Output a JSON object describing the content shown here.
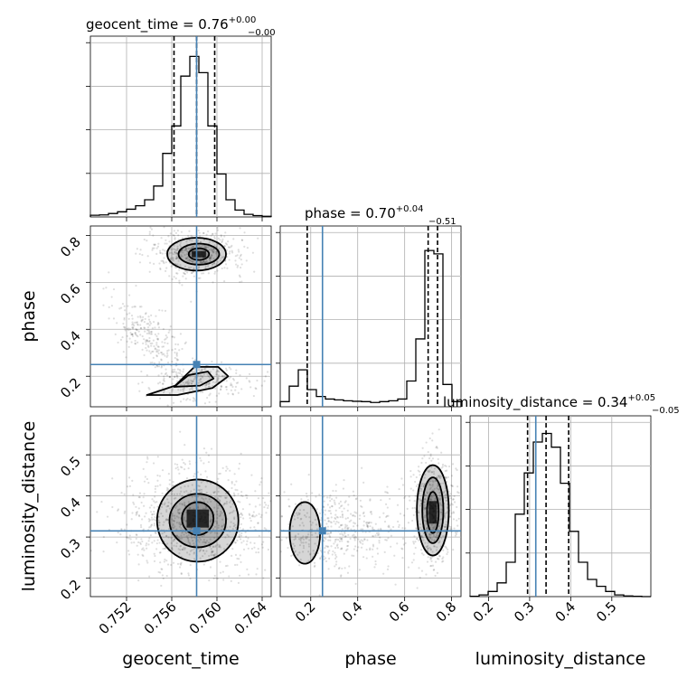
{
  "chart_data": {
    "type": "corner",
    "parameters": [
      "geocent_time",
      "phase",
      "luminosity_distance"
    ],
    "truths": {
      "geocent_time": 0.7582,
      "phase": 0.25,
      "luminosity_distance": 0.315
    },
    "truth_color": "#4682b4",
    "density_color": "#000000",
    "diagonal_titles": [
      {
        "param": "geocent_time",
        "text": "geocent_time = 0.76",
        "sup": "+0.00",
        "sub": "−0.00"
      },
      {
        "param": "phase",
        "text": "phase = 0.70",
        "sup": "+0.04",
        "sub": "−0.51"
      },
      {
        "param": "luminosity_distance",
        "text": "luminosity_distance = 0.34",
        "sup": "+0.05",
        "sub": "−0.05"
      }
    ],
    "axes": {
      "geocent_time": {
        "range": [
          0.7488,
          0.7648
        ],
        "ticks": [
          0.752,
          0.756,
          0.76,
          0.764
        ],
        "tick_labels": [
          "0.752",
          "0.756",
          "0.760",
          "0.764"
        ]
      },
      "phase": {
        "range": [
          0.07,
          0.84
        ],
        "ticks": [
          0.2,
          0.4,
          0.6,
          0.8
        ],
        "tick_labels": [
          "0.2",
          "0.4",
          "0.6",
          "0.8"
        ]
      },
      "luminosity_distance": {
        "range": [
          0.155,
          0.595
        ],
        "ticks": [
          0.2,
          0.3,
          0.4,
          0.5
        ],
        "tick_labels": [
          "0.2",
          "0.3",
          "0.4",
          "0.5"
        ]
      }
    },
    "histograms": {
      "geocent_time": {
        "bin_edges": [
          0.7488,
          0.7496,
          0.7504,
          0.7512,
          0.752,
          0.7528,
          0.7536,
          0.7544,
          0.7552,
          0.756,
          0.7568,
          0.7576,
          0.7584,
          0.7592,
          0.76,
          0.7608,
          0.7616,
          0.7624,
          0.7632,
          0.764,
          0.7648
        ],
        "counts": [
          0.01,
          0.012,
          0.02,
          0.03,
          0.045,
          0.065,
          0.1,
          0.18,
          0.37,
          0.53,
          0.82,
          0.935,
          0.84,
          0.53,
          0.25,
          0.1,
          0.04,
          0.015,
          0.008,
          0.004
        ],
        "quantiles": [
          0.7562,
          0.7582,
          0.7598
        ]
      },
      "phase": {
        "bin_edges": [
          0.07,
          0.1085,
          0.147,
          0.1855,
          0.224,
          0.2625,
          0.301,
          0.3395,
          0.378,
          0.4165,
          0.455,
          0.4935,
          0.532,
          0.5705,
          0.609,
          0.6475,
          0.686,
          0.7245,
          0.763,
          0.8015,
          0.84
        ],
        "counts": [
          0.03,
          0.12,
          0.215,
          0.1,
          0.06,
          0.045,
          0.04,
          0.035,
          0.032,
          0.03,
          0.025,
          0.03,
          0.035,
          0.045,
          0.15,
          0.395,
          0.91,
          0.89,
          0.13,
          0.03
        ],
        "quantiles": [
          0.185,
          0.7,
          0.74
        ]
      },
      "luminosity_distance": {
        "bin_edges": [
          0.155,
          0.177,
          0.199,
          0.221,
          0.243,
          0.265,
          0.287,
          0.309,
          0.331,
          0.353,
          0.375,
          0.397,
          0.419,
          0.441,
          0.463,
          0.485,
          0.507,
          0.529,
          0.551,
          0.573,
          0.595
        ],
        "counts": [
          0.002,
          0.01,
          0.03,
          0.08,
          0.2,
          0.48,
          0.72,
          0.9,
          0.95,
          0.87,
          0.66,
          0.38,
          0.2,
          0.1,
          0.06,
          0.03,
          0.01,
          0.004,
          0.002,
          0.0
        ],
        "quantiles": [
          0.295,
          0.34,
          0.395
        ]
      }
    },
    "contours_2d": [
      {
        "x": "geocent_time",
        "y": "phase",
        "levels": [
          {
            "shape": "ellipse",
            "center": [
              0.7582,
              0.72
            ],
            "rx": 0.0026,
            "ry": 0.07
          },
          {
            "shape": "ellipse",
            "center": [
              0.7584,
              0.72
            ],
            "rx": 0.0018,
            "ry": 0.045
          },
          {
            "shape": "ellipse",
            "center": [
              0.7584,
              0.72
            ],
            "rx": 0.0009,
            "ry": 0.025
          },
          {
            "shape": "polygon",
            "points": [
              [
                0.7538,
                0.12
              ],
              [
                0.7563,
                0.16
              ],
              [
                0.758,
                0.24
              ],
              [
                0.7601,
                0.24
              ],
              [
                0.761,
                0.2
              ],
              [
                0.7596,
                0.15
              ],
              [
                0.7565,
                0.12
              ]
            ]
          },
          {
            "shape": "polygon",
            "points": [
              [
                0.7562,
                0.155
              ],
              [
                0.7575,
                0.205
              ],
              [
                0.7592,
                0.22
              ],
              [
                0.7597,
                0.19
              ],
              [
                0.7585,
                0.16
              ]
            ]
          }
        ]
      },
      {
        "x": "geocent_time",
        "y": "luminosity_distance",
        "levels": [
          {
            "shape": "ellipse",
            "center": [
              0.7583,
              0.34
            ],
            "rx": 0.0036,
            "ry": 0.1
          },
          {
            "shape": "ellipse",
            "center": [
              0.7583,
              0.34
            ],
            "rx": 0.0025,
            "ry": 0.065
          },
          {
            "shape": "ellipse",
            "center": [
              0.7583,
              0.345
            ],
            "rx": 0.0014,
            "ry": 0.04
          }
        ]
      },
      {
        "x": "phase",
        "y": "luminosity_distance",
        "levels": [
          {
            "shape": "ellipse",
            "center": [
              0.72,
              0.365
            ],
            "rx": 0.068,
            "ry": 0.11
          },
          {
            "shape": "ellipse",
            "center": [
              0.72,
              0.365
            ],
            "rx": 0.045,
            "ry": 0.08
          },
          {
            "shape": "ellipse",
            "center": [
              0.72,
              0.36
            ],
            "rx": 0.025,
            "ry": 0.05
          },
          {
            "shape": "ellipse",
            "center": [
              0.175,
              0.31
            ],
            "rx": 0.065,
            "ry": 0.075
          }
        ]
      }
    ],
    "scatter_regions": [
      {
        "x": "geocent_time",
        "y": "phase",
        "modes": [
          {
            "cx": 0.7582,
            "cy": 0.72,
            "sx": 0.0022,
            "sy": 0.05,
            "n": 500
          },
          {
            "cx": 0.7585,
            "cy": 0.18,
            "sx": 0.0022,
            "sy": 0.04,
            "n": 250
          },
          {
            "cx": 0.754,
            "cy": 0.36,
            "sx": 0.0018,
            "sy": 0.06,
            "n": 260,
            "slope": -38
          }
        ]
      },
      {
        "x": "geocent_time",
        "y": "luminosity_distance",
        "modes": [
          {
            "cx": 0.7582,
            "cy": 0.34,
            "sx": 0.0032,
            "sy": 0.065,
            "n": 900
          }
        ]
      },
      {
        "x": "phase",
        "y": "luminosity_distance",
        "modes": [
          {
            "cx": 0.72,
            "cy": 0.36,
            "sx": 0.045,
            "sy": 0.07,
            "n": 550
          },
          {
            "cx": 0.25,
            "cy": 0.31,
            "sx": 0.1,
            "sy": 0.05,
            "n": 320
          },
          {
            "cx": 0.45,
            "cy": 0.32,
            "sx": 0.1,
            "sy": 0.05,
            "n": 160
          }
        ]
      }
    ]
  }
}
